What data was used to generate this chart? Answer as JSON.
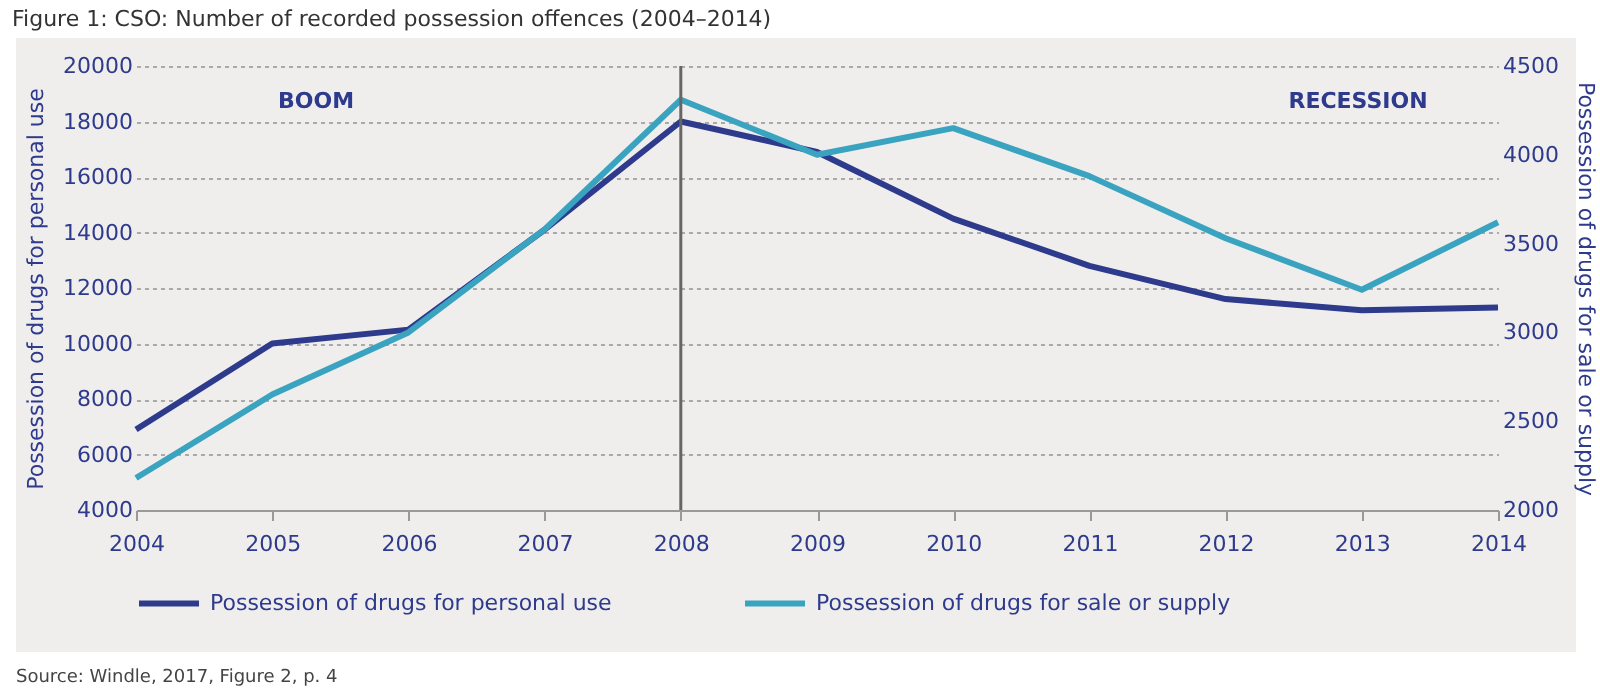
{
  "chart_data": {
    "type": "line",
    "title": "Figure 1: CSO: Number of recorded possession offences (2004–2014)",
    "ylabel": "Possession of drugs for personal use",
    "y2label": "Possession of drugs for sale or supply",
    "annotations": [
      "BOOM",
      "RECESSION",
      "Source: Windle, 2017, Figure 2, p. 4"
    ],
    "x": [
      2004,
      2005,
      2006,
      2007,
      2008,
      2009,
      2010,
      2011,
      2012,
      2013,
      2014
    ],
    "series": [
      {
        "name": "Possession of drugs for personal use",
        "color": "#2e3a8c",
        "values": [
          6900,
          10000,
          10500,
          14100,
          18000,
          16900,
          14500,
          12800,
          11600,
          11200,
          11300
        ]
      },
      {
        "name": "Possession of drugs for sale or supply",
        "color": "#3aa3c0",
        "axis": "y2",
        "values": [
          2180,
          2650,
          3000,
          3580,
          4310,
          4000,
          4150,
          3880,
          3530,
          3240,
          3620
        ]
      }
    ],
    "xlim": [
      2004,
      2014
    ],
    "xticks": [
      2004,
      2005,
      2006,
      2007,
      2008,
      2009,
      2010,
      2011,
      2012,
      2013,
      2014
    ],
    "ylim": [
      4000,
      20000
    ],
    "yticks": [
      4000,
      6000,
      8000,
      10000,
      12000,
      14000,
      16000,
      18000,
      20000
    ],
    "y2lim": [
      2000,
      4500
    ],
    "y2ticks": [
      2000,
      2500,
      3000,
      3500,
      4000,
      4500
    ],
    "ref_lines": [
      {
        "axis": "x",
        "value": 2008,
        "color": "#666666"
      }
    ],
    "grid": "y",
    "legend": "bottom",
    "line_style": "solid"
  }
}
